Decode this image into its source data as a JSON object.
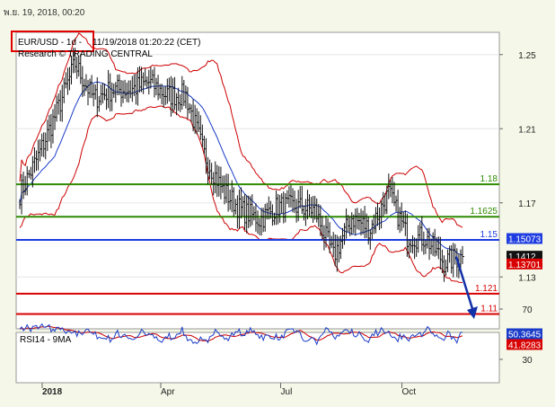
{
  "header": {
    "date": "พ.ย. 19, 2018, 00:20",
    "symbol": "EUR/USD - 1d - ",
    "timestamp": "11/19/2018 01:20:22 (CET)",
    "research": "Research © TRADING CENTRAL"
  },
  "colors": {
    "background": "#f5f8e8",
    "panel": "#ffffff",
    "bars": "#111111",
    "bollinger": "#cc0000",
    "moving_average": "#1a3cc8",
    "resistance": "#2e8b00",
    "pivot": "#1f3de0",
    "support": "#d80000",
    "forecast_arrow": "#1230a8",
    "highlight_box": "#e00000",
    "rsi_line": "#1a3cc8",
    "rsi_ma": "#cc0000"
  },
  "chart_data": [
    {
      "type": "line",
      "title": "EUR/USD - 1d",
      "ylim": [
        1.102,
        1.262
      ],
      "y_ticks": [
        "1.25",
        "1.21",
        "1.17",
        "1.13"
      ],
      "x_ticks": [
        "2018",
        "Apr",
        "Jul",
        "Oct"
      ],
      "levels": [
        {
          "label": "1.18",
          "value": 1.18,
          "role": "resistance"
        },
        {
          "label": "1.1625",
          "value": 1.1625,
          "role": "resistance"
        },
        {
          "label": "1.15",
          "value": 1.15,
          "role": "pivot"
        },
        {
          "label": "1.121",
          "value": 1.121,
          "role": "support"
        },
        {
          "label": "1.11",
          "value": 1.11,
          "role": "support"
        }
      ],
      "price_tags": [
        {
          "label": "1.15073",
          "value": 1.15073,
          "color": "#1f3de0"
        },
        {
          "label": "1.1412",
          "value": 1.1412,
          "color": "#111111"
        },
        {
          "label": "1.13701",
          "value": 1.13701,
          "color": "#d80000"
        }
      ],
      "close_series": [
        {
          "date": "2017-12-15",
          "close": 1.175
        },
        {
          "date": "2017-12-29",
          "close": 1.195
        },
        {
          "date": "2018-01-12",
          "close": 1.219
        },
        {
          "date": "2018-01-26",
          "close": 1.245
        },
        {
          "date": "2018-02-09",
          "close": 1.226
        },
        {
          "date": "2018-02-23",
          "close": 1.231
        },
        {
          "date": "2018-03-09",
          "close": 1.231
        },
        {
          "date": "2018-03-23",
          "close": 1.235
        },
        {
          "date": "2018-04-06",
          "close": 1.228
        },
        {
          "date": "2018-04-20",
          "close": 1.228
        },
        {
          "date": "2018-05-04",
          "close": 1.196
        },
        {
          "date": "2018-05-18",
          "close": 1.177
        },
        {
          "date": "2018-06-01",
          "close": 1.166
        },
        {
          "date": "2018-06-15",
          "close": 1.161
        },
        {
          "date": "2018-06-29",
          "close": 1.168
        },
        {
          "date": "2018-07-13",
          "close": 1.168
        },
        {
          "date": "2018-07-27",
          "close": 1.166
        },
        {
          "date": "2018-08-10",
          "close": 1.141
        },
        {
          "date": "2018-08-24",
          "close": 1.162
        },
        {
          "date": "2018-09-07",
          "close": 1.156
        },
        {
          "date": "2018-09-21",
          "close": 1.175
        },
        {
          "date": "2018-10-05",
          "close": 1.152
        },
        {
          "date": "2018-10-19",
          "close": 1.151
        },
        {
          "date": "2018-11-02",
          "close": 1.138
        },
        {
          "date": "2018-11-16",
          "close": 1.141
        }
      ],
      "forecast": {
        "from": 1.141,
        "to": 1.11
      },
      "highlight": "EUR/USD - 1d - "
    },
    {
      "type": "line",
      "title": "RSI14 - 9MA",
      "ylim": [
        30,
        70
      ],
      "y_ticks": [
        "70",
        "30"
      ],
      "price_tags": [
        {
          "label": "50.3645",
          "value": 50.3645,
          "color": "#1a3cc8"
        },
        {
          "label": "41.8283",
          "value": 41.8283,
          "color": "#d80000"
        }
      ]
    }
  ]
}
